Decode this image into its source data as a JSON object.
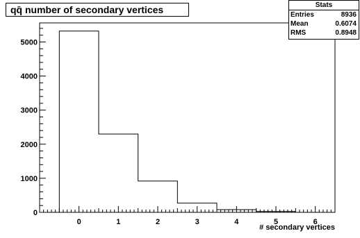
{
  "chart_data": {
    "type": "bar",
    "title": "qq̄ number of secondary vertices",
    "xlabel": "# secondary vertices",
    "ylabel": "",
    "bin_edges": [
      -0.5,
      0.5,
      1.5,
      2.5,
      3.5,
      4.5,
      5.5
    ],
    "values": [
      5320,
      2300,
      920,
      270,
      80,
      25
    ],
    "xlim": [
      -1,
      6.5
    ],
    "ylim": [
      0,
      5560
    ],
    "x_ticks": [
      "0",
      "1",
      "2",
      "3",
      "4",
      "5",
      "6"
    ],
    "y_ticks": [
      "0",
      "1000",
      "2000",
      "3000",
      "4000",
      "5000"
    ],
    "grid": false,
    "legend": "none"
  },
  "stats": {
    "title": "Stats",
    "rows": [
      {
        "label": "Entries",
        "value": "8936"
      },
      {
        "label": "Mean",
        "value": "0.6074"
      },
      {
        "label": "RMS",
        "value": "0.8948"
      }
    ]
  }
}
